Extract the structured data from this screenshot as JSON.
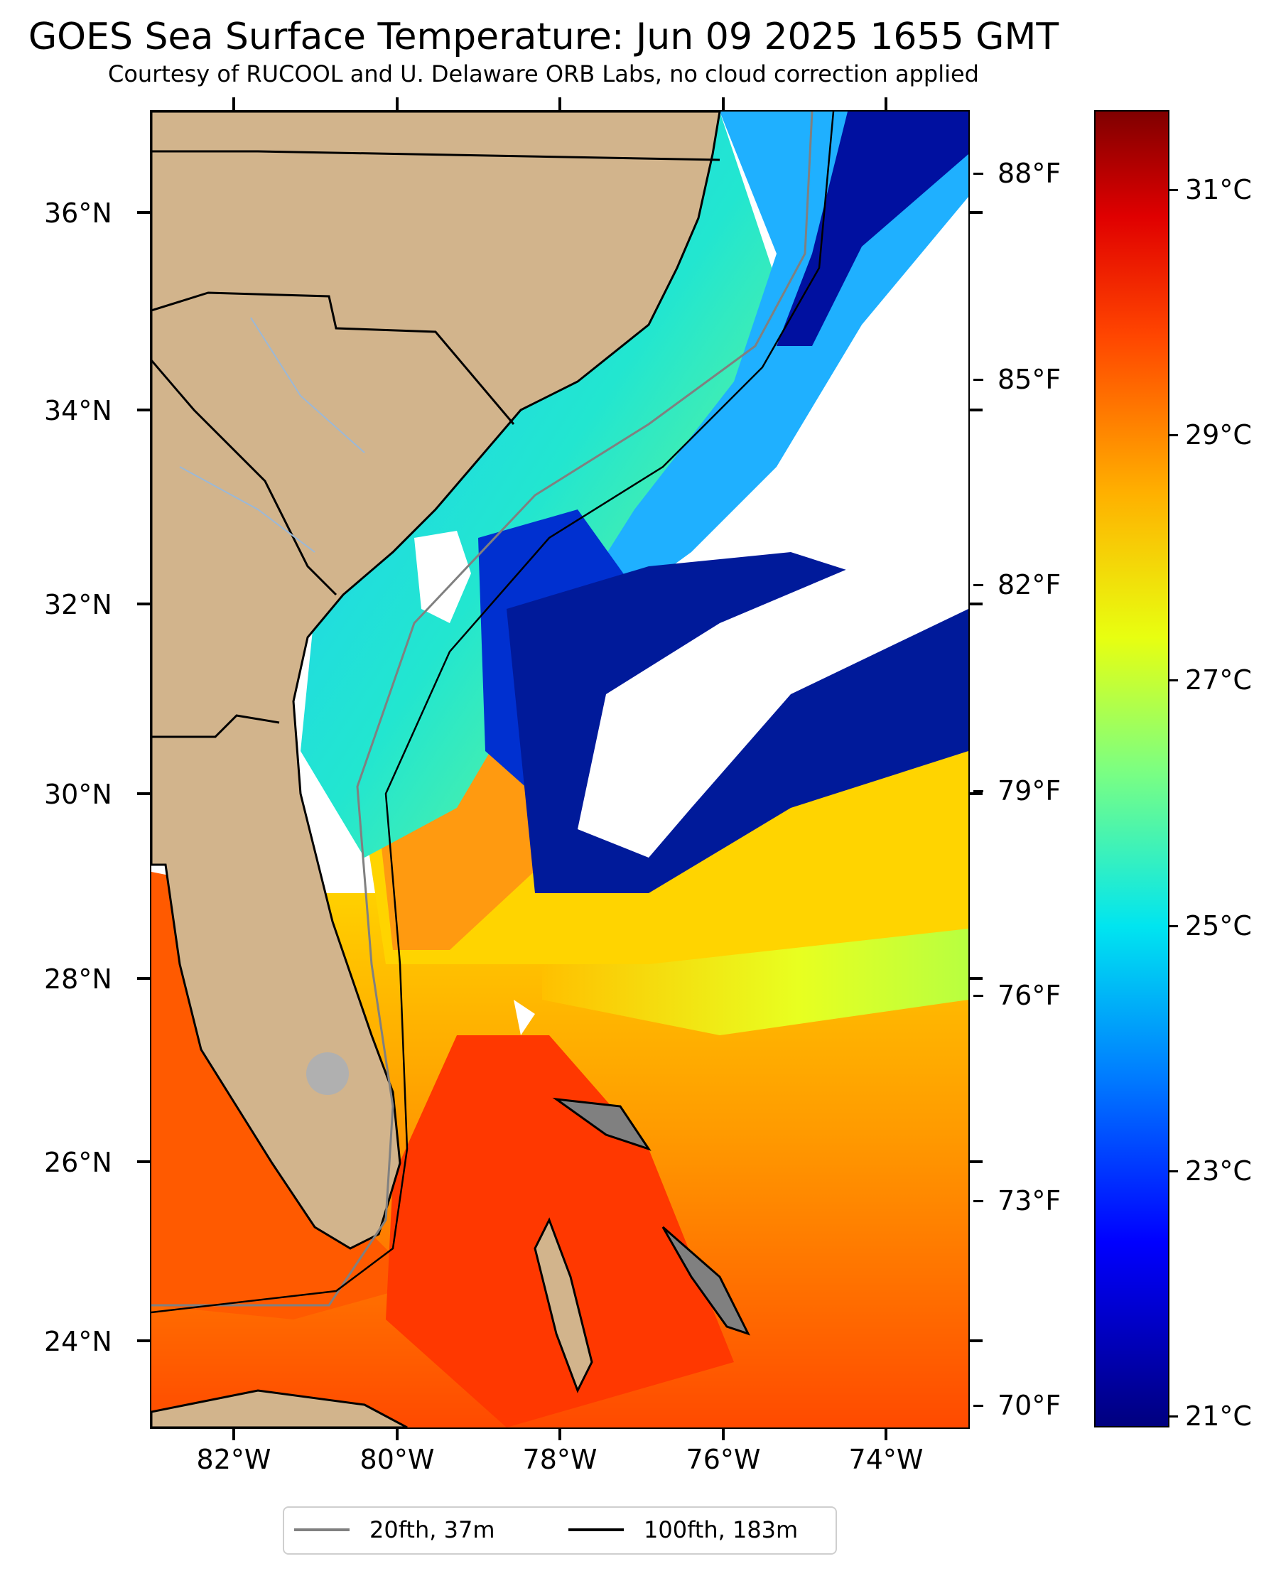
{
  "title": "GOES Sea Surface Temperature: Jun 09 2025 1655 GMT",
  "subtitle": "Courtesy of RUCOOL and U. Delaware ORB Labs, no cloud correction applied",
  "colors": {
    "land": "#d2b48c",
    "cloud": "#ffffff",
    "isobath_20": "#808080",
    "isobath_100": "#000000"
  },
  "chart_data": {
    "type": "heatmap",
    "title": "GOES Sea Surface Temperature: Jun 09 2025 1655 GMT",
    "lat_ticks": [
      "36°N",
      "34°N",
      "32°N",
      "30°N",
      "28°N",
      "26°N",
      "24°N"
    ],
    "lon_ticks": [
      "82°W",
      "80°W",
      "78°W",
      "76°W",
      "74°W"
    ],
    "fahrenheit_ticks": [
      "88°F",
      "85°F",
      "82°F",
      "79°F",
      "76°F",
      "73°F",
      "70°F"
    ],
    "colorbar_ticks": [
      "31°C",
      "29°C",
      "27°C",
      "25°C",
      "23°C",
      "21°C"
    ],
    "colorbar_range_c": [
      20.8,
      31.8
    ],
    "colormap": "jet"
  },
  "legend": {
    "items": [
      {
        "label": "20fth, 37m",
        "color": "#808080"
      },
      {
        "label": "100fth, 183m",
        "color": "#000000"
      }
    ]
  }
}
